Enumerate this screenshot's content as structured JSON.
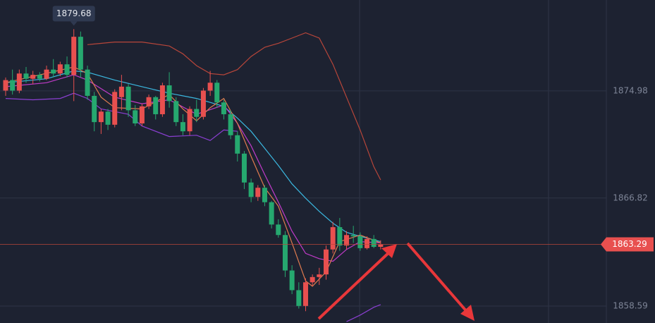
{
  "chart_data": {
    "type": "candlestick",
    "ylim": [
      1857.3,
      1881.9
    ],
    "yticks": [
      1874.98,
      1866.82,
      1858.59
    ],
    "grid": true,
    "up_color": "#e8504f",
    "down_color": "#26a86f",
    "candles": {
      "open": [
        1875.0,
        1875.8,
        1875.0,
        1876.3,
        1875.9,
        1876.2,
        1875.9,
        1876.6,
        1876.3,
        1877.0,
        1876.2,
        1879.1,
        1876.6,
        1874.6,
        1872.6,
        1873.4,
        1872.4,
        1874.5,
        1875.3,
        1873.5,
        1872.5,
        1873.8,
        1874.5,
        1873.2,
        1875.4,
        1874.2,
        1872.6,
        1871.9,
        1873.6,
        1873.0,
        1875.0,
        1875.6,
        1874.1,
        1873.2,
        1871.6,
        1870.2,
        1868.0,
        1866.9,
        1867.6,
        1866.5,
        1864.8,
        1864.0,
        1861.3,
        1859.8,
        1858.6,
        1860.4,
        1860.8,
        1861.0,
        1862.9,
        1864.6,
        1863.2,
        1864.0,
        1863.9,
        1863.0,
        1863.7,
        1863.1
      ],
      "high": [
        1876.0,
        1876.6,
        1876.6,
        1876.8,
        1876.5,
        1876.4,
        1876.9,
        1877.4,
        1877.2,
        1877.6,
        1879.68,
        1879.5,
        1876.9,
        1874.9,
        1873.6,
        1873.6,
        1875.1,
        1876.2,
        1875.5,
        1873.9,
        1874.0,
        1874.7,
        1874.6,
        1875.6,
        1876.4,
        1874.5,
        1873.2,
        1873.8,
        1874.3,
        1875.2,
        1876.5,
        1875.8,
        1874.3,
        1873.5,
        1871.9,
        1870.4,
        1868.3,
        1867.8,
        1867.8,
        1866.6,
        1865.2,
        1864.3,
        1861.7,
        1860.4,
        1860.7,
        1861.0,
        1861.5,
        1863.2,
        1865.0,
        1865.3,
        1864.3,
        1864.7,
        1864.2,
        1863.9,
        1864.0,
        1863.6
      ],
      "low": [
        1874.6,
        1874.7,
        1874.8,
        1875.6,
        1875.5,
        1875.7,
        1875.8,
        1876.0,
        1876.1,
        1876.0,
        1874.2,
        1876.0,
        1874.3,
        1871.9,
        1871.7,
        1872.0,
        1872.2,
        1873.5,
        1873.0,
        1872.3,
        1872.3,
        1873.6,
        1872.8,
        1873.0,
        1873.7,
        1872.3,
        1871.6,
        1871.6,
        1872.6,
        1872.8,
        1874.6,
        1873.7,
        1872.8,
        1871.3,
        1869.6,
        1867.5,
        1866.5,
        1866.6,
        1866.2,
        1864.5,
        1863.8,
        1860.8,
        1859.5,
        1858.4,
        1858.2,
        1860.1,
        1860.2,
        1860.6,
        1862.6,
        1862.8,
        1862.9,
        1863.4,
        1862.8,
        1862.9,
        1863.0,
        1862.9
      ],
      "close": [
        1875.8,
        1875.0,
        1876.3,
        1875.9,
        1876.2,
        1875.9,
        1876.6,
        1876.3,
        1877.0,
        1876.2,
        1879.1,
        1876.6,
        1874.6,
        1872.6,
        1873.4,
        1872.4,
        1874.9,
        1875.3,
        1873.5,
        1872.5,
        1873.8,
        1874.5,
        1873.2,
        1875.4,
        1874.2,
        1872.6,
        1871.9,
        1873.6,
        1873.0,
        1875.0,
        1875.6,
        1874.1,
        1873.2,
        1871.6,
        1870.2,
        1868.0,
        1866.9,
        1867.6,
        1866.5,
        1864.8,
        1864.0,
        1861.3,
        1859.8,
        1858.6,
        1860.4,
        1860.8,
        1861.0,
        1862.9,
        1864.6,
        1863.2,
        1864.0,
        1863.9,
        1863.0,
        1863.7,
        1863.1,
        1863.29
      ]
    },
    "high_label_index": 10,
    "current_price": 1863.29,
    "lines": [
      {
        "color": "#b8463a",
        "x": [
          12,
          16,
          20,
          24,
          26,
          28,
          30,
          32,
          34,
          36,
          38,
          40,
          42,
          44,
          46,
          48,
          50,
          52,
          54,
          55
        ],
        "values": [
          1878.5,
          1878.7,
          1878.7,
          1878.4,
          1877.8,
          1876.9,
          1876.3,
          1876.2,
          1876.6,
          1877.6,
          1878.3,
          1878.6,
          1879.0,
          1879.4,
          1879.0,
          1877.0,
          1874.5,
          1872.0,
          1869.2,
          1868.2
        ]
      },
      {
        "color": "#8a3fd1",
        "x": [
          0,
          4,
          8,
          10,
          12,
          14,
          18,
          20,
          24,
          28,
          30,
          32,
          34,
          36,
          50,
          52,
          54,
          55
        ],
        "values": [
          1874.4,
          1874.3,
          1874.4,
          1874.8,
          1874.4,
          1873.6,
          1873.2,
          1872.3,
          1871.5,
          1871.6,
          1871.2,
          1872.0,
          1871.9,
          null,
          1857.4,
          1857.9,
          1858.5,
          1858.7
        ]
      },
      {
        "color": "#3bb8e0",
        "x": [
          0,
          6,
          10,
          12,
          16,
          20,
          24,
          28,
          32,
          34,
          36,
          38,
          40,
          42,
          44,
          46,
          48,
          50,
          52,
          55
        ],
        "values": [
          1875.6,
          1875.9,
          1876.5,
          1876.4,
          1875.8,
          1875.3,
          1874.8,
          1874.4,
          1873.8,
          1872.9,
          1871.9,
          1870.6,
          1869.3,
          1867.9,
          1866.8,
          1865.8,
          1864.9,
          1864.2,
          1863.9,
          1863.5
        ]
      },
      {
        "color": "#c13bc9",
        "x": [
          0,
          6,
          10,
          12,
          16,
          20,
          24,
          28,
          32,
          34,
          36,
          38,
          40,
          42,
          44,
          46,
          48,
          50,
          52,
          55
        ],
        "values": [
          1875.3,
          1875.6,
          1876.2,
          1875.8,
          1874.5,
          1874.0,
          1874.3,
          1873.2,
          1873.9,
          1872.5,
          1870.8,
          1868.6,
          1866.5,
          1864.3,
          1862.6,
          1862.2,
          1862.0,
          1862.9,
          1863.5,
          1863.4
        ]
      },
      {
        "color": "#e07b4f",
        "x": [
          0,
          10,
          12,
          14,
          16,
          20,
          24,
          26,
          28,
          30,
          32,
          34,
          36,
          38,
          40,
          42,
          44,
          45,
          47,
          49,
          52,
          55
        ],
        "values": [
          1875.6,
          1876.8,
          1876.3,
          1874.5,
          1873.7,
          1873.6,
          1874.7,
          1873.6,
          1872.7,
          1873.7,
          1874.4,
          1872.5,
          1870.0,
          1867.6,
          1866.2,
          1863.4,
          1860.5,
          1860.1,
          1861.2,
          1863.5,
          1864.0,
          1863.4
        ]
      }
    ]
  }
}
